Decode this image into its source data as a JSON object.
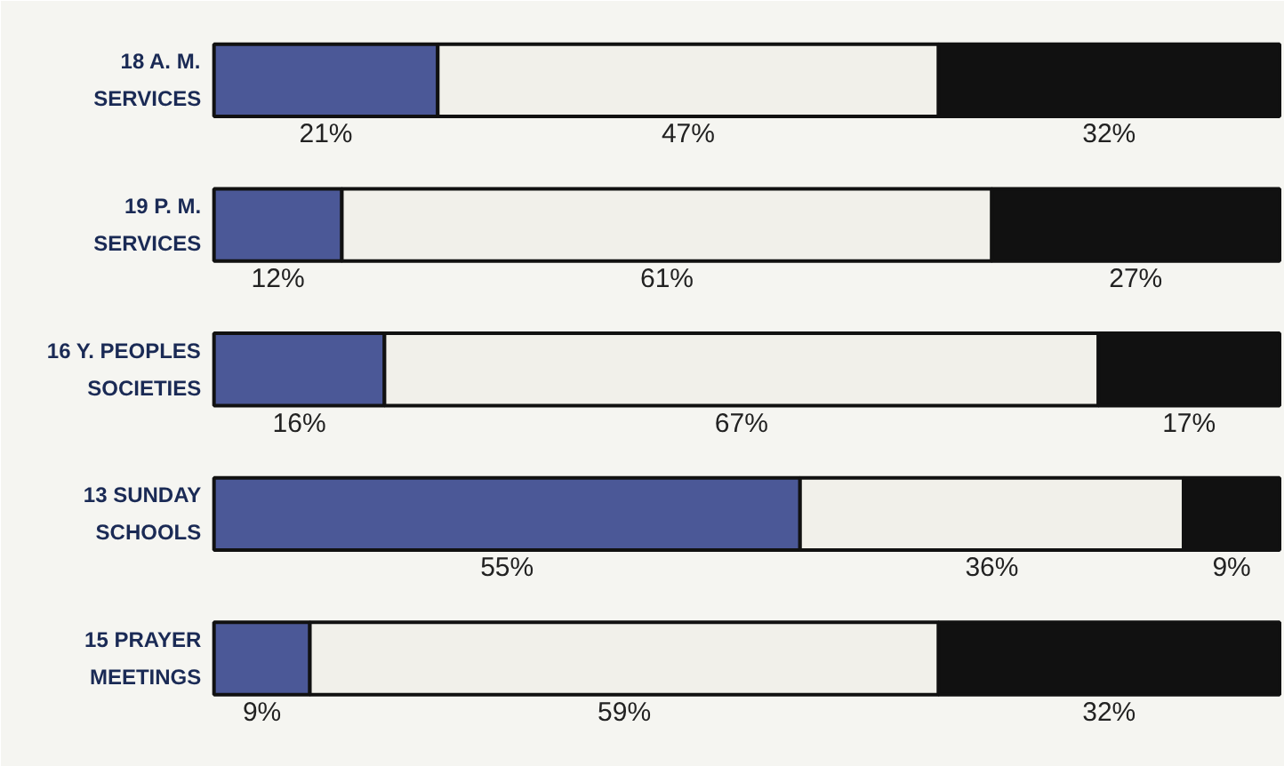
{
  "chart_data": {
    "type": "bar",
    "orientation": "horizontal",
    "stacked": true,
    "categories": [
      "18 A. M.\nSERVICES",
      "19 P. M.\nSERVICES",
      "16 Y. PEOPLES\nSOCIETIES",
      "13 SUNDAY\nSCHOOLS",
      "15 PRAYER\nMEETINGS"
    ],
    "series": [
      {
        "color": "#4b5897",
        "values": [
          21,
          12,
          16,
          55,
          9
        ],
        "value_labels": [
          "21%",
          "12%",
          "16%",
          "55%",
          "9%"
        ]
      },
      {
        "color": "#f1f0ea",
        "values": [
          47,
          61,
          67,
          36,
          59
        ],
        "value_labels": [
          "47%",
          "61%",
          "67%",
          "36%",
          "59%"
        ]
      },
      {
        "color": "#111111",
        "values": [
          32,
          27,
          17,
          9,
          32
        ],
        "value_labels": [
          "32%",
          "27%",
          "17%",
          "9%",
          "32%"
        ]
      }
    ]
  }
}
